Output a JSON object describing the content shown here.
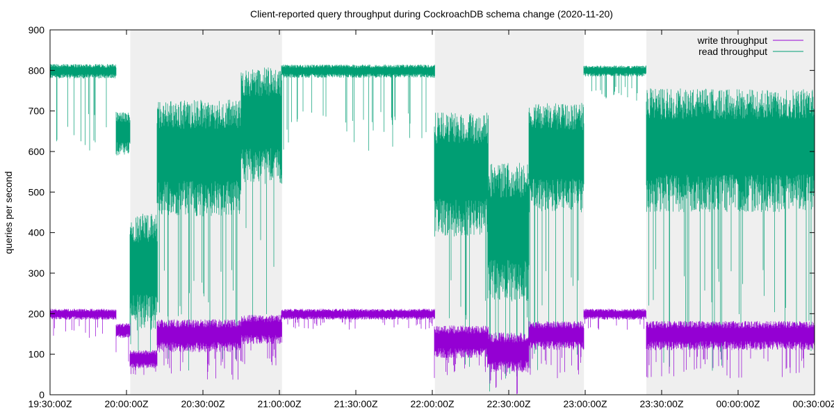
{
  "chart_data": {
    "type": "line",
    "title": "Client-reported query throughput during CockroachDB schema change (2020-11-20)",
    "xlabel": "",
    "ylabel": "queries per second",
    "x_range": [
      "19:30:00Z",
      "00:30:00Z"
    ],
    "x_tick_labels": [
      "19:30:00Z",
      "20:00:00Z",
      "20:30:00Z",
      "21:00:00Z",
      "21:30:00Z",
      "22:00:00Z",
      "22:30:00Z",
      "23:00:00Z",
      "23:30:00Z",
      "00:00:00Z",
      "00:30:00Z"
    ],
    "ylim": [
      0,
      900
    ],
    "y_ticks": [
      0,
      100,
      200,
      300,
      400,
      500,
      600,
      700,
      800,
      900
    ],
    "grid": false,
    "legend_position": "top-right",
    "shaded_intervals": [
      {
        "start": "20:01:30Z",
        "end": "21:01:00Z"
      },
      {
        "start": "22:01:00Z",
        "end": "22:59:30Z"
      },
      {
        "start": "23:24:00Z",
        "end": "00:30:00Z"
      }
    ],
    "segments": [
      {
        "start": "19:30:00Z",
        "end": "19:56:00Z",
        "read": [
          800,
          20,
          600
        ],
        "write": [
          200,
          15,
          140
        ]
      },
      {
        "start": "19:56:00Z",
        "end": "20:01:30Z",
        "read": [
          650,
          60,
          400
        ],
        "write": [
          160,
          20,
          80
        ]
      },
      {
        "start": "20:01:30Z",
        "end": "20:12:00Z",
        "read": [
          320,
          160,
          100
        ],
        "write": [
          90,
          25,
          40
        ]
      },
      {
        "start": "20:12:00Z",
        "end": "20:45:00Z",
        "read": [
          600,
          160,
          50
        ],
        "write": [
          150,
          45,
          30
        ]
      },
      {
        "start": "20:45:00Z",
        "end": "21:01:00Z",
        "read": [
          680,
          160,
          150
        ],
        "write": [
          165,
          40,
          60
        ]
      },
      {
        "start": "21:01:00Z",
        "end": "22:01:00Z",
        "read": [
          800,
          18,
          600
        ],
        "write": [
          200,
          15,
          160
        ]
      },
      {
        "start": "22:01:00Z",
        "end": "22:22:00Z",
        "read": [
          560,
          170,
          50
        ],
        "write": [
          135,
          45,
          40
        ]
      },
      {
        "start": "22:22:00Z",
        "end": "22:38:00Z",
        "read": [
          420,
          190,
          0
        ],
        "write": [
          110,
          55,
          0
        ]
      },
      {
        "start": "22:38:00Z",
        "end": "22:59:30Z",
        "read": [
          600,
          150,
          60
        ],
        "write": [
          150,
          40,
          40
        ]
      },
      {
        "start": "22:59:30Z",
        "end": "23:24:00Z",
        "read": [
          800,
          15,
          720
        ],
        "write": [
          200,
          15,
          160
        ]
      },
      {
        "start": "23:24:00Z",
        "end": "00:30:00Z",
        "read": [
          620,
          170,
          40
        ],
        "write": [
          150,
          40,
          40
        ]
      }
    ],
    "series": [
      {
        "name": "write throughput",
        "color": "#9400d3"
      },
      {
        "name": "read throughput",
        "color": "#009e73"
      }
    ]
  }
}
